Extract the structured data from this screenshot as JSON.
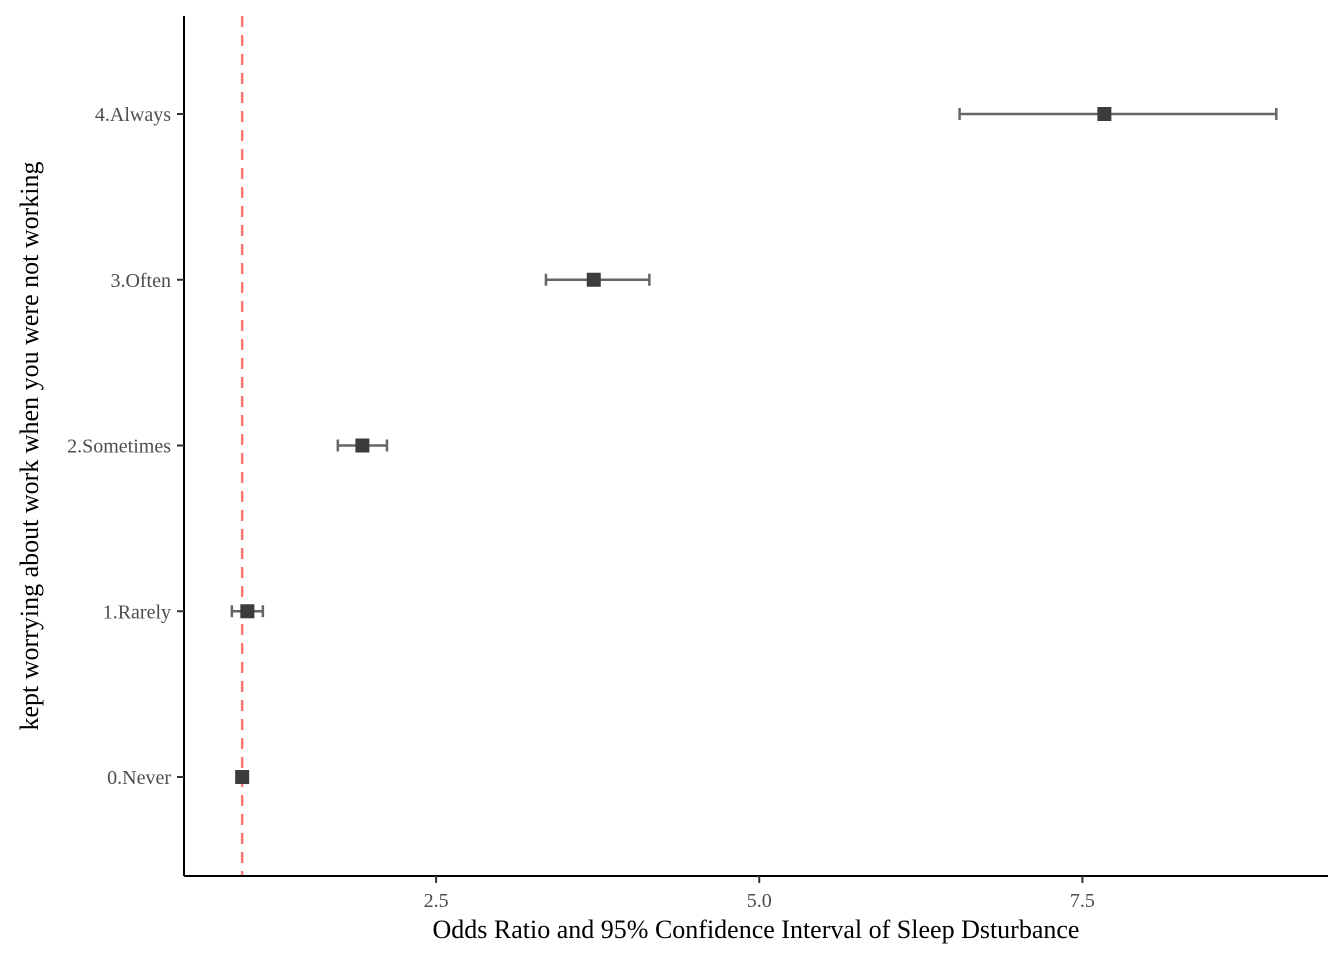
{
  "chart_data": {
    "type": "scatter",
    "subtype": "forest-plot",
    "xlabel": "Odds Ratio and 95% Confidence Interval of Sleep Dsturbance",
    "ylabel": "kept worrying about work when you were not working",
    "xlim": [
      0.55,
      9.4
    ],
    "x_ticks": [
      {
        "value": 2.5,
        "label": "2.5"
      },
      {
        "value": 5.0,
        "label": "5.0"
      },
      {
        "value": 7.5,
        "label": "7.5"
      }
    ],
    "reference_line": {
      "x": 1.0,
      "style": "dashed",
      "color": "#f8766d"
    },
    "grid": false,
    "legend": "none",
    "point_color": "#3c3c3c",
    "errorbar_color": "#666666",
    "categories": [
      "0.Never",
      "1.Rarely",
      "2.Sometimes",
      "3.Often",
      "4.Always"
    ],
    "series": [
      {
        "estimate": [
          1.0,
          1.04,
          1.93,
          3.72,
          7.67
        ],
        "ci_low": [
          1.0,
          0.92,
          1.74,
          3.35,
          6.55
        ],
        "ci_high": [
          1.0,
          1.16,
          2.12,
          4.15,
          9.0
        ]
      }
    ]
  }
}
